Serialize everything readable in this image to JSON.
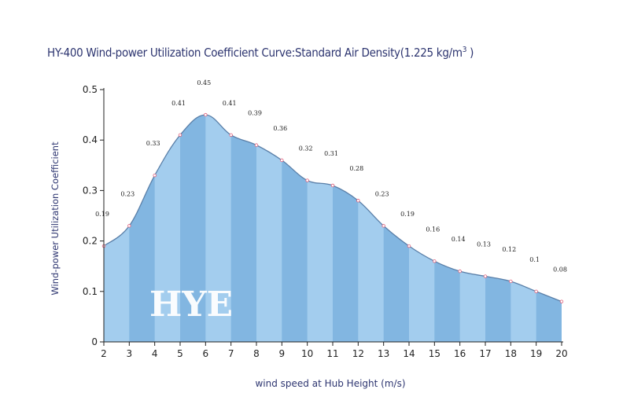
{
  "chart_data": {
    "type": "area",
    "title": "HY-400 Wind-power Utilization Coefficient  Curve:Standard Air Density(1.225 kg/m³ )",
    "title_main": "HY-400 Wind-power Utilization Coefficient  Curve:Standard Air Density(1.225 kg/m",
    "title_sup": "3",
    "title_end": " )",
    "xlabel": "wind speed at Hub Height  (m/s)",
    "ylabel": "Wind-power Utilization Coefficient",
    "x": [
      2,
      3,
      4,
      5,
      6,
      7,
      8,
      9,
      10,
      11,
      12,
      13,
      14,
      15,
      16,
      17,
      18,
      19,
      20
    ],
    "values": [
      0.19,
      0.23,
      0.33,
      0.41,
      0.45,
      0.41,
      0.39,
      0.36,
      0.32,
      0.31,
      0.28,
      0.23,
      0.19,
      0.16,
      0.14,
      0.13,
      0.12,
      0.1,
      0.08
    ],
    "xlim": [
      2,
      20
    ],
    "ylim": [
      0,
      0.5
    ],
    "yticks": [
      "0",
      "0.1",
      "0.2",
      "0.3",
      "0.4",
      "0.5"
    ],
    "grid": false,
    "watermark": "HYE",
    "colors": {
      "fill_light": "#a3cdee",
      "fill_dark": "#82b6e1",
      "line": "#5a7fa8",
      "marker": "#e0607a",
      "title": "#2d3570"
    }
  }
}
